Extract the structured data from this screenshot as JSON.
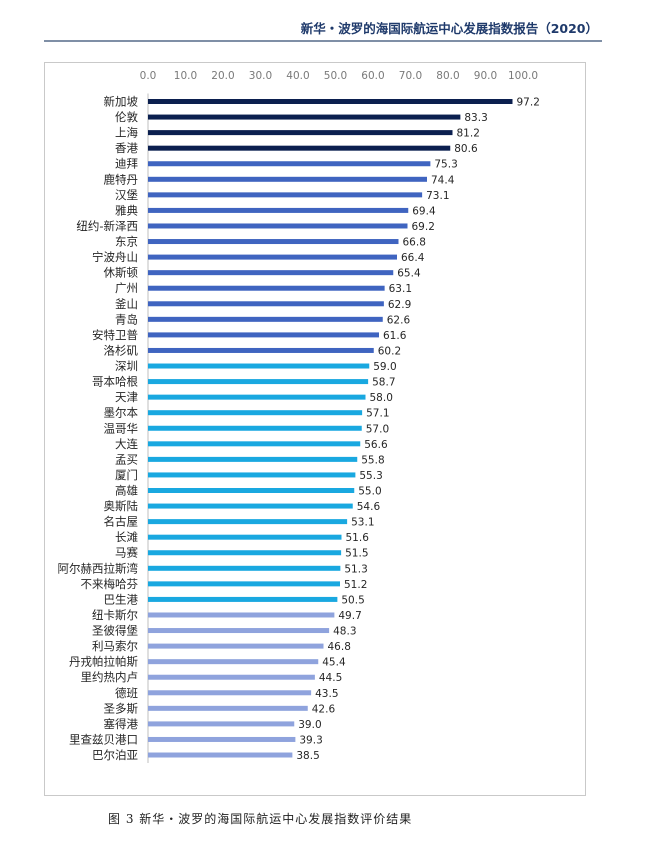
{
  "header": {
    "title": "新华・波罗的海国际航运中心发展指数报告（2020）"
  },
  "caption": "图 3 新华・波罗的海国际航运中心发展指数评价结果",
  "colors": {
    "dark_navy": "#0b1f4f",
    "royal_blue": "#3f64c0",
    "sky_blue": "#19a8e0",
    "periwinkle": "#8fa3dd",
    "label_text": "#262626",
    "axis_text": "#7a7a7a"
  },
  "chart_data": {
    "type": "bar",
    "orientation": "horizontal",
    "title": "",
    "xlabel": "",
    "ylabel": "",
    "xlim": [
      0,
      100
    ],
    "x_ticks": [
      "0.0",
      "10.0",
      "20.0",
      "30.0",
      "40.0",
      "50.0",
      "60.0",
      "70.0",
      "80.0",
      "90.0",
      "100.0"
    ],
    "x_axis_position": "top",
    "grid": false,
    "legend": "none",
    "categories": [
      "新加坡",
      "伦敦",
      "上海",
      "香港",
      "迪拜",
      "鹿特丹",
      "汉堡",
      "雅典",
      "纽约-新泽西",
      "东京",
      "宁波舟山",
      "休斯顿",
      "广州",
      "釜山",
      "青岛",
      "安特卫普",
      "洛杉矶",
      "深圳",
      "哥本哈根",
      "天津",
      "墨尔本",
      "温哥华",
      "大连",
      "孟买",
      "厦门",
      "高雄",
      "奥斯陆",
      "名古屋",
      "长滩",
      "马赛",
      "阿尔赫西拉斯湾",
      "不来梅哈芬",
      "巴生港",
      "纽卡斯尔",
      "圣彼得堡",
      "利马索尔",
      "丹戎帕拉帕斯",
      "里约热内卢",
      "德班",
      "圣多斯",
      "塞得港",
      "里查兹贝港口",
      "巴尔泊亚"
    ],
    "values": [
      97.2,
      83.3,
      81.2,
      80.6,
      75.3,
      74.4,
      73.1,
      69.4,
      69.2,
      66.8,
      66.4,
      65.4,
      63.1,
      62.9,
      62.6,
      61.6,
      60.2,
      59.0,
      58.7,
      58.0,
      57.1,
      57.0,
      56.6,
      55.8,
      55.3,
      55.0,
      54.6,
      53.1,
      51.6,
      51.5,
      51.3,
      51.2,
      50.5,
      49.7,
      48.3,
      46.8,
      45.4,
      44.5,
      43.5,
      42.6,
      39.0,
      39.3,
      38.5
    ],
    "value_labels": [
      "97.2",
      "83.3",
      "81.2",
      "80.6",
      "75.3",
      "74.4",
      "73.1",
      "69.4",
      "69.2",
      "66.8",
      "66.4",
      "65.4",
      "63.1",
      "62.9",
      "62.6",
      "61.6",
      "60.2",
      "59.0",
      "58.7",
      "58.0",
      "57.1",
      "57.0",
      "56.6",
      "55.8",
      "55.3",
      "55.0",
      "54.6",
      "53.1",
      "51.6",
      "51.5",
      "51.3",
      "51.2",
      "50.5",
      "49.7",
      "48.3",
      "46.8",
      "45.4",
      "44.5",
      "43.5",
      "42.6",
      "39.0",
      "39.3",
      "38.5"
    ],
    "bar_color_groups": [
      {
        "color": "#0b1f4f",
        "count": 4
      },
      {
        "color": "#3f64c0",
        "count": 13
      },
      {
        "color": "#19a8e0",
        "count": 16
      },
      {
        "color": "#8fa3dd",
        "count": 10
      }
    ]
  }
}
